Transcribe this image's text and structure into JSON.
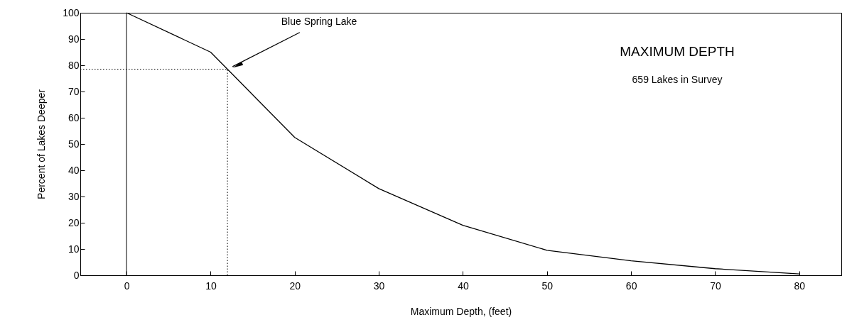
{
  "chart_data": {
    "type": "line",
    "title": "MAXIMUM DEPTH",
    "subtitle": "659 Lakes in Survey",
    "xlabel": "Maximum Depth, (feet)",
    "ylabel": "Percent of Lakes Deeper",
    "x": [
      0,
      10,
      12,
      20,
      30,
      40,
      50,
      60,
      70,
      80
    ],
    "series": [
      {
        "color": "#000000",
        "values": [
          100,
          85,
          78.5,
          52.5,
          33,
          19,
          9.5,
          5.5,
          2.5,
          0.5
        ]
      }
    ],
    "xlim": [
      -5.5,
      85
    ],
    "xticks": [
      0,
      10,
      20,
      30,
      40,
      50,
      60,
      70,
      80
    ],
    "ylim": [
      0,
      100
    ],
    "yticks": [
      0,
      10,
      20,
      30,
      40,
      50,
      60,
      70,
      80,
      90,
      100
    ],
    "marker": "none",
    "line_style": "solid",
    "ref_lines": [
      {
        "axis": "x",
        "value": 0,
        "line_style": "solid"
      },
      {
        "axis": "y",
        "value": 78.5,
        "line_style": "dotted"
      },
      {
        "axis": "x",
        "value": 12,
        "line_style": "dotted"
      }
    ],
    "annotations": [
      {
        "text": "Blue Spring Lake",
        "x": 12,
        "y": 78.5
      }
    ]
  }
}
